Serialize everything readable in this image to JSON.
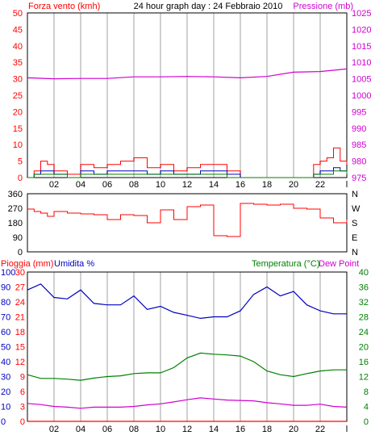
{
  "chart_data": [
    {
      "type": "line",
      "title": "24 hour graph day : 24 Febbraio 2010",
      "left_axis_label": "Forza vento (kmh)",
      "right_axis_label": "Pressione (mb)",
      "x_tick_labels": [
        "02",
        "04",
        "06",
        "08",
        "10",
        "12",
        "14",
        "16",
        "18",
        "20",
        "22",
        "l"
      ],
      "left_ticks": [
        "0",
        "5",
        "10",
        "15",
        "20",
        "25",
        "30",
        "35",
        "40",
        "45",
        "50"
      ],
      "right_ticks": [
        "975",
        "980",
        "985",
        "990",
        "995",
        "1000",
        "1005",
        "1010",
        "1015",
        "1020",
        "1025"
      ],
      "ylim_left": [
        0,
        50
      ],
      "ylim_right": [
        975,
        1025
      ],
      "colors": {
        "wind_gust": "#ff0000",
        "wind_speed": "#0000c0",
        "wind_avg": "#008000",
        "pressure": "#d000d0"
      },
      "pressure_x": [
        0,
        2,
        4,
        6,
        8,
        10,
        12,
        14,
        16,
        18,
        20,
        22,
        24
      ],
      "pressure_values": [
        1005.3,
        1005.0,
        1005.1,
        1005.1,
        1005.6,
        1005.6,
        1005.7,
        1005.6,
        1005.3,
        1005.7,
        1007.0,
        1007.2,
        1008.0
      ],
      "wind_x": [
        0,
        0.5,
        1,
        1.5,
        2,
        3,
        4,
        5,
        6,
        7,
        8,
        9,
        10,
        11,
        12,
        13,
        14,
        15,
        16,
        17,
        18,
        19,
        20,
        21,
        21.5,
        22,
        22.5,
        23,
        23.5,
        24
      ],
      "wind_gust_values": [
        0,
        2,
        5,
        4,
        2,
        1,
        4,
        3,
        4,
        5,
        6,
        3,
        4,
        2,
        3,
        4,
        4,
        2,
        0,
        0,
        0,
        0,
        0,
        0,
        4,
        5,
        6,
        9,
        5,
        4
      ],
      "wind_speed_values": [
        0,
        1,
        2,
        2,
        1,
        0,
        2,
        1,
        2,
        2,
        2,
        1,
        2,
        1,
        1,
        2,
        2,
        1,
        0,
        0,
        0,
        0,
        0,
        0,
        1,
        2,
        2,
        3,
        2,
        1
      ],
      "wind_avg_values": [
        0,
        1,
        1,
        1,
        1,
        0,
        1,
        1,
        1,
        1,
        1,
        1,
        1,
        1,
        1,
        1,
        1,
        0,
        0,
        0,
        0,
        0,
        0,
        0,
        1,
        1,
        1,
        2,
        2,
        1
      ]
    },
    {
      "type": "line",
      "left_ticks": [
        "0",
        "90",
        "180",
        "270",
        "360"
      ],
      "right_ticks": [
        "N",
        "E",
        "S",
        "W",
        "N"
      ],
      "ylim": [
        0,
        360
      ],
      "colors": {
        "direction": "#ff0000"
      },
      "direction_x": [
        0,
        0.5,
        1,
        1.5,
        2,
        3,
        4,
        5,
        6,
        7,
        8,
        9,
        10,
        11,
        12,
        13,
        14,
        15,
        16,
        17,
        18,
        19,
        20,
        21,
        22,
        23,
        24
      ],
      "direction_values": [
        265,
        250,
        240,
        220,
        250,
        240,
        235,
        230,
        200,
        230,
        225,
        180,
        260,
        200,
        280,
        290,
        100,
        95,
        300,
        295,
        290,
        295,
        270,
        265,
        210,
        180,
        200
      ]
    },
    {
      "type": "line",
      "left_axis_label_1": "Pioggia (mm)",
      "left_axis_label_2": "Umidita %",
      "right_axis_label_1": "Temperatura (°C)",
      "right_axis_label_2": "Dew Point",
      "x_tick_labels": [
        "02",
        "04",
        "06",
        "08",
        "10",
        "12",
        "14",
        "16",
        "18",
        "20",
        "22",
        "l"
      ],
      "rain_ticks": [
        "0",
        "3",
        "6",
        "9",
        "12",
        "15",
        "18",
        "21",
        "24",
        "27",
        "30"
      ],
      "humidity_ticks": [
        "0",
        "10",
        "20",
        "30",
        "40",
        "50",
        "60",
        "70",
        "80",
        "90",
        "100"
      ],
      "temp_ticks": [
        "0",
        "4",
        "8",
        "12",
        "16",
        "20",
        "24",
        "28",
        "32",
        "36",
        "40"
      ],
      "ylim_humidity": [
        0,
        100
      ],
      "ylim_temp": [
        0,
        40
      ],
      "ylim_rain": [
        0,
        30
      ],
      "colors": {
        "humidity": "#0000c0",
        "temperature": "#008000",
        "dew_point": "#d000d0",
        "rain": "#ff0000"
      },
      "x": [
        0,
        1,
        2,
        3,
        4,
        5,
        6,
        7,
        8,
        9,
        10,
        11,
        12,
        13,
        14,
        15,
        16,
        17,
        18,
        19,
        20,
        21,
        22,
        23,
        24
      ],
      "humidity_values": [
        88,
        92,
        83,
        82,
        88,
        79,
        78,
        78,
        84,
        75,
        77,
        73,
        71,
        69,
        70,
        70,
        74,
        85,
        90,
        84,
        87,
        78,
        74,
        72,
        72
      ],
      "temperature_values": [
        12.5,
        11.5,
        11.5,
        11.3,
        11.0,
        11.6,
        12.0,
        12.2,
        12.8,
        13.0,
        13.0,
        14.4,
        17.0,
        18.3,
        18.0,
        17.8,
        17.5,
        16.0,
        13.5,
        12.5,
        12.0,
        12.8,
        13.5,
        13.8,
        13.8
      ],
      "dew_point_values": [
        4.8,
        4.5,
        4.0,
        3.8,
        3.5,
        3.8,
        3.8,
        3.8,
        4.0,
        4.4,
        4.7,
        5.2,
        5.8,
        6.3,
        6.0,
        5.7,
        5.6,
        5.5,
        5.0,
        4.7,
        4.3,
        4.3,
        4.6,
        4.0,
        3.8
      ],
      "rain_values": [
        0,
        0,
        0,
        0,
        0,
        0,
        0,
        0,
        0,
        0,
        0,
        0,
        0,
        0,
        0,
        0,
        0,
        0,
        0,
        0,
        0,
        0,
        0,
        0,
        0
      ]
    }
  ]
}
